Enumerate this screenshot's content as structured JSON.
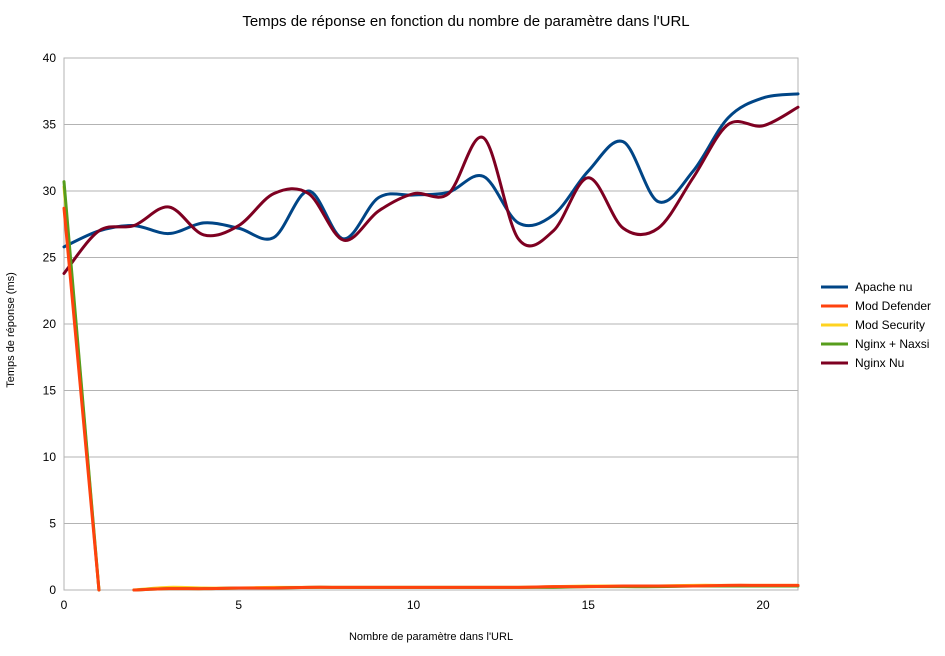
{
  "chart_data": {
    "type": "line",
    "title": "Temps de réponse en fonction du nombre de paramètre dans l'URL",
    "xlabel": "Nombre de paramètre dans l'URL",
    "ylabel": "Temps de réponse (ms)",
    "xlim": [
      0,
      21
    ],
    "ylim": [
      0,
      40
    ],
    "xticks": [
      0,
      5,
      10,
      15,
      20
    ],
    "yticks": [
      0,
      5,
      10,
      15,
      20,
      25,
      30,
      35,
      40
    ],
    "grid": "horizontal",
    "legend_position": "right",
    "x": [
      0,
      1,
      2,
      3,
      4,
      5,
      6,
      7,
      8,
      9,
      10,
      11,
      12,
      13,
      14,
      15,
      16,
      17,
      18,
      19,
      20,
      21
    ],
    "series": [
      {
        "name": "Apache nu",
        "color": "#004586",
        "values": [
          25.8,
          27.0,
          27.4,
          26.8,
          27.6,
          27.2,
          26.5,
          30.0,
          26.4,
          29.5,
          29.7,
          29.9,
          31.1,
          27.6,
          28.2,
          31.5,
          33.7,
          29.2,
          31.5,
          35.5,
          37.0,
          37.3
        ]
      },
      {
        "name": "Nginx Nu",
        "color": "#7e0021",
        "values": [
          23.8,
          27.0,
          27.4,
          28.8,
          26.7,
          27.4,
          29.8,
          29.8,
          26.3,
          28.5,
          29.8,
          29.8,
          34.0,
          26.4,
          27.0,
          31.0,
          27.2,
          27.2,
          31.0,
          35.0,
          34.9,
          36.3
        ]
      },
      {
        "name": "Mod Security",
        "color": "#ffd320",
        "values": [
          30.3,
          0.0,
          0.0,
          0.2,
          0.15,
          0.15,
          0.2,
          0.2,
          0.2,
          0.2,
          0.2,
          0.2,
          0.2,
          0.2,
          0.25,
          0.3,
          0.3,
          0.3,
          0.35,
          0.35,
          0.35,
          0.35
        ],
        "gaps_after": [
          1
        ]
      },
      {
        "name": "Nginx + Naxsi",
        "color": "#579d1c",
        "values": [
          30.7,
          0.0,
          0.0,
          0.1,
          0.1,
          0.15,
          0.15,
          0.2,
          0.2,
          0.2,
          0.2,
          0.2,
          0.2,
          0.2,
          0.2,
          0.25,
          0.25,
          0.25,
          0.3,
          0.3,
          0.3,
          0.3
        ],
        "gaps_after": [
          1
        ]
      },
      {
        "name": "Mod Defender",
        "color": "#ff420e",
        "values": [
          28.7,
          0.0,
          0.0,
          0.1,
          0.1,
          0.15,
          0.15,
          0.2,
          0.2,
          0.2,
          0.2,
          0.2,
          0.2,
          0.2,
          0.25,
          0.25,
          0.3,
          0.3,
          0.3,
          0.35,
          0.35,
          0.35
        ],
        "gaps_after": [
          1
        ]
      }
    ],
    "legend_order": [
      "Apache nu",
      "Mod Defender",
      "Mod Security",
      "Nginx + Naxsi",
      "Nginx Nu"
    ]
  }
}
